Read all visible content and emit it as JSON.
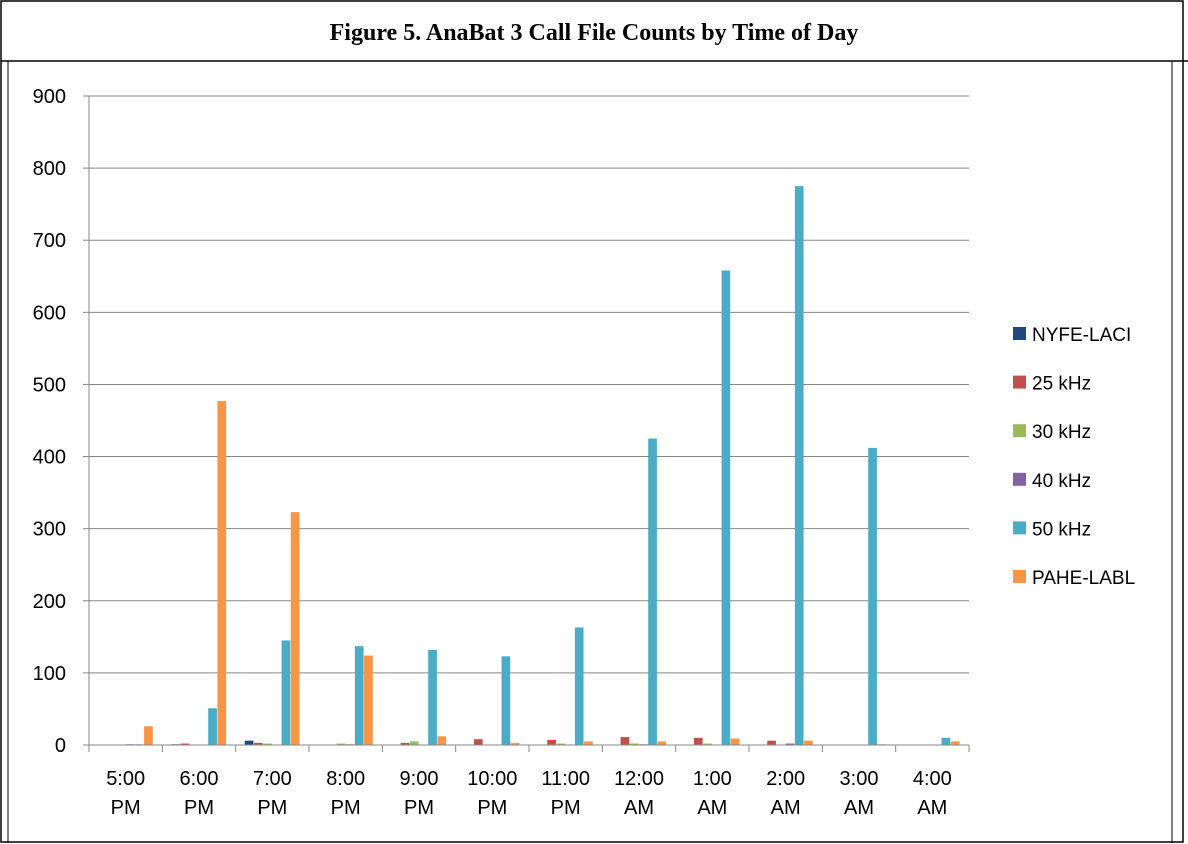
{
  "chart_data": {
    "type": "bar",
    "title": "Figure 5.  AnaBat 3 Call File Counts by Time of Day",
    "xlabel": "",
    "ylabel": "",
    "ylim": [
      0,
      900
    ],
    "yticks": [
      "0",
      "100",
      "200",
      "300",
      "400",
      "500",
      "600",
      "700",
      "800",
      "900"
    ],
    "grid": true,
    "legend": "right",
    "categories": [
      [
        "5:00",
        "PM"
      ],
      [
        "6:00",
        "PM"
      ],
      [
        "7:00",
        "PM"
      ],
      [
        "8:00",
        "PM"
      ],
      [
        "9:00",
        "PM"
      ],
      [
        "10:00",
        "PM"
      ],
      [
        "11:00",
        "PM"
      ],
      [
        "12:00",
        "AM"
      ],
      [
        "1:00",
        "AM"
      ],
      [
        "2:00",
        "AM"
      ],
      [
        "3:00",
        "AM"
      ],
      [
        "4:00",
        "AM"
      ]
    ],
    "series": [
      {
        "name": "NYFE-LACI",
        "color": "#1f497d",
        "values": [
          0,
          1,
          6,
          0,
          0,
          0,
          0,
          0,
          0,
          0,
          0,
          0
        ]
      },
      {
        "name": "25 kHz",
        "color": "#c0504d",
        "values": [
          0,
          2,
          3,
          0,
          3,
          8,
          7,
          11,
          10,
          6,
          0,
          0
        ]
      },
      {
        "name": "30 kHz",
        "color": "#9bbb59",
        "values": [
          0,
          0,
          2,
          2,
          5,
          0,
          2,
          2,
          2,
          0,
          0,
          0
        ]
      },
      {
        "name": "40 kHz",
        "color": "#8064a2",
        "values": [
          1,
          0,
          0,
          1,
          0,
          0,
          0,
          1,
          0,
          2,
          0,
          0
        ]
      },
      {
        "name": "50 kHz",
        "color": "#4bacc6",
        "values": [
          1,
          51,
          145,
          137,
          132,
          123,
          163,
          425,
          658,
          775,
          412,
          10
        ]
      },
      {
        "name": "PAHE-LABL",
        "color": "#f79646",
        "values": [
          26,
          477,
          323,
          124,
          12,
          3,
          5,
          5,
          9,
          6,
          1,
          5
        ]
      }
    ]
  }
}
